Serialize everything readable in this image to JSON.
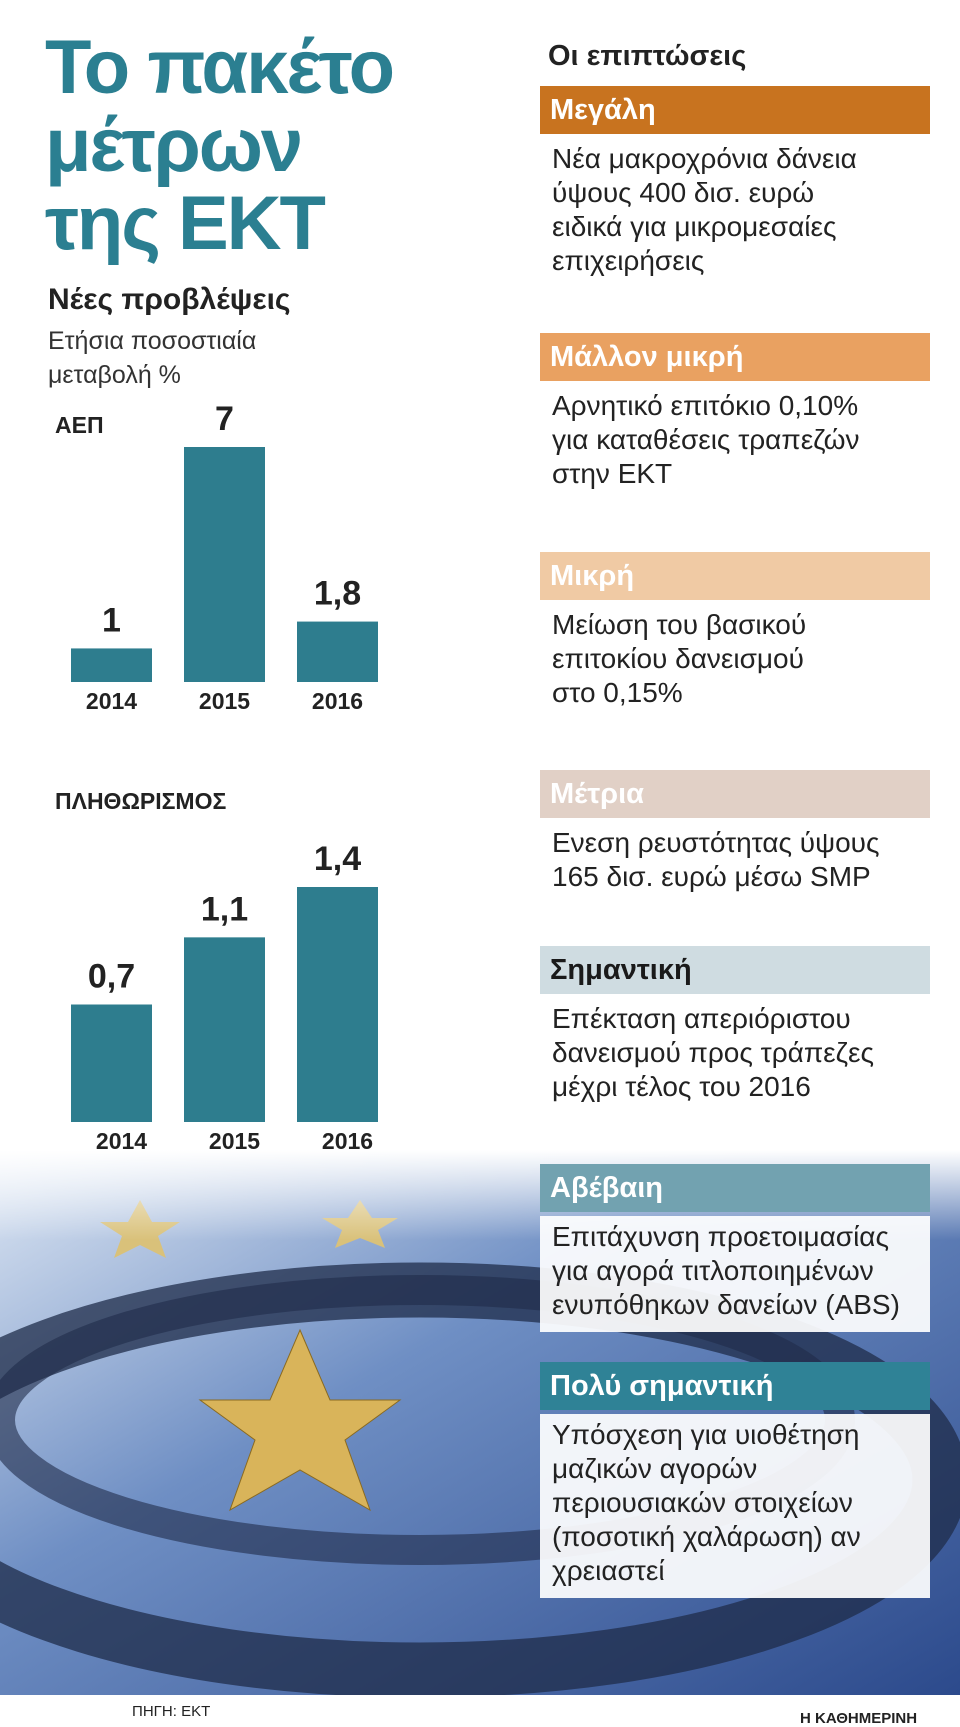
{
  "title": [
    "Το πακέτο",
    "μέτρων",
    "της ΕΚΤ"
  ],
  "forecasts": {
    "heading": "Νέες προβλέψεις",
    "subheading": [
      "Ετήσια ποσοστιαία",
      "μεταβολή %"
    ]
  },
  "chart_data": [
    {
      "type": "bar",
      "title": "ΑΕΠ",
      "categories": [
        "2014",
        "2015",
        "2016"
      ],
      "values": [
        1,
        7,
        1.8
      ],
      "value_labels": [
        "1",
        "7",
        "1,8"
      ],
      "color": "#2e7d8e"
    },
    {
      "type": "bar",
      "title": "ΠΛΗΘΩΡΙΣΜΟΣ",
      "categories": [
        "2014",
        "2015",
        "2016"
      ],
      "values": [
        0.7,
        1.1,
        1.4
      ],
      "value_labels": [
        "0,7",
        "1,1",
        "1,4"
      ],
      "color": "#2e7d8e"
    }
  ],
  "impacts": {
    "heading": "Οι επιπτώσεις",
    "items": [
      {
        "rating": "Μεγάλη",
        "color": "#c8731f",
        "text_color": "#ffffff",
        "text": [
          "Νέα μακροχρόνια δάνεια",
          "ύψους 400 δισ. ευρώ",
          "ειδικά για μικρομεσαίες",
          "επιχειρήσεις"
        ]
      },
      {
        "rating": "Μάλλον μικρή",
        "color": "#e9a161",
        "text_color": "#ffffff",
        "text": [
          "Αρνητικό επιτόκιο 0,10%",
          "για καταθέσεις τραπεζών",
          "στην ΕΚΤ"
        ]
      },
      {
        "rating": "Μικρή",
        "color": "#f0caa4",
        "text_color": "#ffffff",
        "text": [
          "Μείωση του βασικού",
          "επιτοκίου δανεισμού",
          "στο 0,15%"
        ]
      },
      {
        "rating": "Μέτρια",
        "color": "#e1d0c6",
        "text_color": "#ffffff",
        "text": [
          "Ενεση ρευστότητας ύψους",
          "165 δισ. ευρώ μέσω SMP"
        ]
      },
      {
        "rating": "Σημαντική",
        "color": "#cfdce1",
        "text_color": "#1a1a1a",
        "text": [
          "Επέκταση απεριόριστου",
          "δανεισμού προς τράπεζες",
          "μέχρι τέλος του 2016"
        ]
      },
      {
        "rating": "Αβέβαιη",
        "color": "#72a2b0",
        "text_color": "#ffffff",
        "text": [
          "Επιτάχυνση προετοιμασίας",
          "για αγορά τιτλοποιημένων",
          "ενυπόθηκων δανείων (ABS)"
        ]
      },
      {
        "rating": "Πολύ σημαντική",
        "color": "#2f8296",
        "text_color": "#ffffff",
        "text": [
          "Υπόσχεση για υιοθέτηση",
          "μαζικών αγορών",
          "περιουσιακών στοιχείων",
          "(ποσοτική χαλάρωση) αν",
          "χρειαστεί"
        ]
      }
    ]
  },
  "source": "ΠΗΓΗ: ΕΚΤ",
  "publisher": "Η ΚΑΘΗΜΕΡΙΝΗ"
}
